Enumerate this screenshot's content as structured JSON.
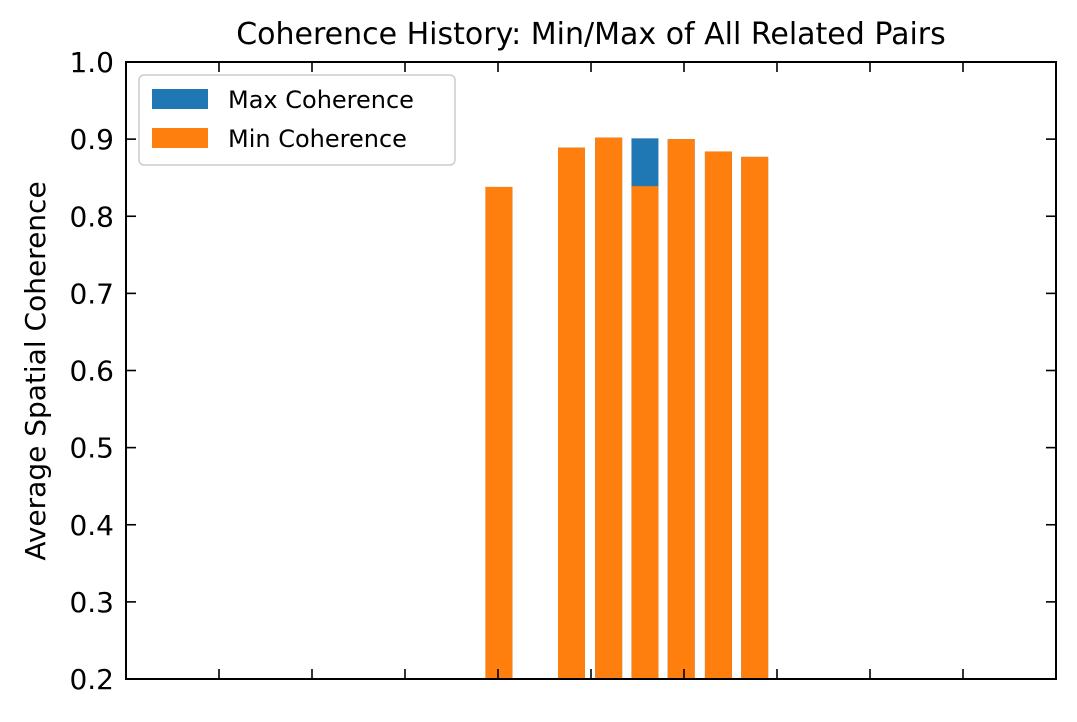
{
  "chart_data": {
    "type": "bar",
    "title": "Coherence History: Min/Max of All Related Pairs",
    "xlabel": "",
    "ylabel": "Average Spatial Coherence",
    "ylim": [
      0.2,
      1.0
    ],
    "yticks": [
      "0.2",
      "0.3",
      "0.4",
      "0.5",
      "0.6",
      "0.7",
      "0.8",
      "0.9",
      "1.0"
    ],
    "xlim": [
      0,
      1
    ],
    "x": [
      0.401,
      0.479,
      0.519,
      0.558,
      0.597,
      0.637,
      0.676
    ],
    "series": [
      {
        "name": "Max Coherence",
        "color": "#1f77b4",
        "values": [
          0.838,
          0.889,
          0.902,
          0.901,
          0.9,
          0.884,
          0.877
        ]
      },
      {
        "name": "Min Coherence",
        "color": "#ff7f0e",
        "values": [
          0.838,
          0.889,
          0.902,
          0.839,
          0.9,
          0.884,
          0.877
        ]
      }
    ],
    "legend": {
      "placement": "top-left",
      "entries": [
        "Max Coherence",
        "Min Coherence"
      ]
    },
    "grid": false,
    "bar_width": 0.029
  }
}
